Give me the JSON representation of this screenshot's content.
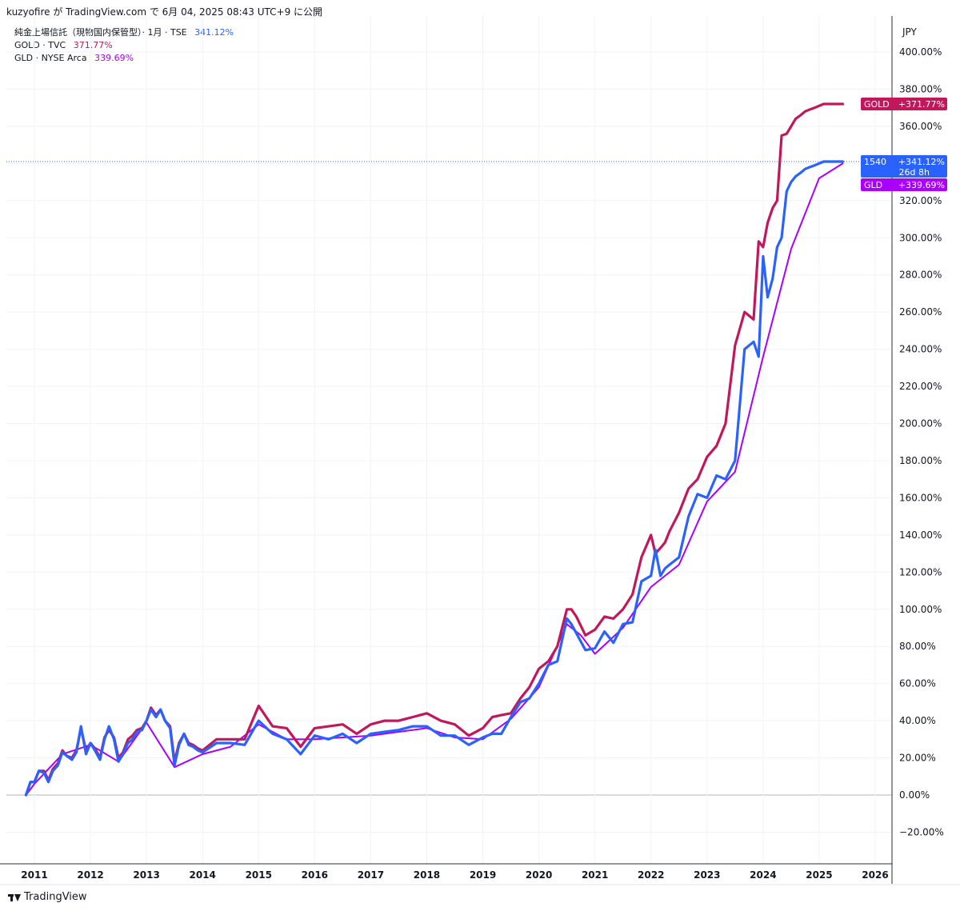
{
  "header": {
    "text": "kuzyofire が TradingView.com で 6月 04, 2025 08:43 UTC+9 に公開"
  },
  "legend": [
    {
      "name": "純金上場信託（現物国内保管型）· 1月 · TSE",
      "value": "341.12%",
      "color": "#2962ff"
    },
    {
      "name": "GOLD · TVC",
      "value": "371.77%",
      "color": "#c2185b"
    },
    {
      "name": "GLD · NYSE Arca",
      "value": "339.69%",
      "color": "#aa00ff"
    }
  ],
  "currency": "JPY",
  "price_labels": {
    "gold": {
      "name": "GOLD",
      "value": "+371.77%",
      "color": "#c2185b"
    },
    "main": {
      "name": "1540",
      "value": "+341.12%",
      "countdown": "26d 8h",
      "color": "#2962ff"
    },
    "gld": {
      "name": "GLD",
      "value": "+339.69%",
      "color": "#aa00ff"
    }
  },
  "footer": {
    "brand": "TradingView"
  },
  "chart_data": {
    "type": "line",
    "title": "",
    "xlabel": "",
    "ylabel": "",
    "ylim": [
      -32,
      405
    ],
    "xlim": [
      2010.85,
      2026.5
    ],
    "y_ticks": [
      -20,
      0,
      20,
      40,
      60,
      80,
      100,
      120,
      140,
      160,
      180,
      200,
      220,
      240,
      260,
      280,
      300,
      320,
      340,
      360,
      380,
      400
    ],
    "y_tick_labels": [
      "−20.00%",
      "0.00%",
      "20.00%",
      "40.00%",
      "60.00%",
      "80.00%",
      "100.00%",
      "120.00%",
      "140.00%",
      "160.00%",
      "180.00%",
      "200.00%",
      "220.00%",
      "240.00%",
      "260.00%",
      "280.00%",
      "300.00%",
      "320.00%",
      "340.00%",
      "360.00%",
      "380.00%",
      "400.00%"
    ],
    "x_ticks": [
      2011,
      2012,
      2013,
      2014,
      2015,
      2016,
      2017,
      2018,
      2019,
      2020,
      2021,
      2022,
      2023,
      2024,
      2025,
      2026
    ],
    "x_tick_labels": [
      "2011",
      "2012",
      "2013",
      "2014",
      "2015",
      "2016",
      "2017",
      "2018",
      "2019",
      "2020",
      "2021",
      "2022",
      "2023",
      "2024",
      "2025",
      "2026"
    ],
    "grid": true,
    "legend_position": "top-left",
    "series": [
      {
        "name": "純金上場信託（現物国内保管型）",
        "color": "#2962ff",
        "x": [
          2010.85,
          2010.93,
          2011.0,
          2011.08,
          2011.17,
          2011.25,
          2011.33,
          2011.42,
          2011.5,
          2011.58,
          2011.67,
          2011.75,
          2011.83,
          2011.92,
          2012.0,
          2012.08,
          2012.17,
          2012.25,
          2012.33,
          2012.42,
          2012.5,
          2012.58,
          2012.67,
          2012.75,
          2012.83,
          2012.92,
          2013.0,
          2013.08,
          2013.17,
          2013.25,
          2013.33,
          2013.42,
          2013.5,
          2013.58,
          2013.67,
          2013.75,
          2013.83,
          2013.92,
          2014.0,
          2014.25,
          2014.5,
          2014.75,
          2015.0,
          2015.25,
          2015.5,
          2015.75,
          2016.0,
          2016.25,
          2016.5,
          2016.75,
          2017.0,
          2017.25,
          2017.5,
          2017.75,
          2018.0,
          2018.25,
          2018.5,
          2018.75,
          2019.0,
          2019.17,
          2019.33,
          2019.5,
          2019.67,
          2019.83,
          2020.0,
          2020.17,
          2020.33,
          2020.5,
          2020.58,
          2020.67,
          2020.83,
          2021.0,
          2021.17,
          2021.33,
          2021.5,
          2021.67,
          2021.83,
          2022.0,
          2022.08,
          2022.17,
          2022.25,
          2022.33,
          2022.5,
          2022.67,
          2022.83,
          2023.0,
          2023.17,
          2023.33,
          2023.5,
          2023.67,
          2023.83,
          2023.92,
          2024.0,
          2024.08,
          2024.17,
          2024.25,
          2024.33,
          2024.42,
          2024.5,
          2024.58,
          2024.67,
          2024.75,
          2024.83,
          2024.92,
          2025.0,
          2025.08,
          2025.17,
          2025.25,
          2025.33,
          2025.42
        ],
        "values": [
          0,
          7,
          7,
          13,
          12,
          7,
          13,
          16,
          23,
          21,
          19,
          23,
          37,
          22,
          28,
          24,
          19,
          30,
          37,
          30,
          18,
          22,
          28,
          30,
          34,
          35,
          40,
          46,
          42,
          46,
          40,
          36,
          16,
          27,
          33,
          27,
          26,
          24,
          23,
          28,
          28,
          27,
          40,
          33,
          30,
          22,
          32,
          30,
          33,
          28,
          33,
          34,
          35,
          37,
          37,
          32,
          32,
          27,
          31,
          33,
          33,
          42,
          50,
          52,
          60,
          70,
          72,
          95,
          92,
          87,
          78,
          79,
          88,
          82,
          92,
          93,
          115,
          118,
          132,
          118,
          122,
          124,
          128,
          150,
          162,
          160,
          172,
          170,
          180,
          240,
          244,
          236,
          290,
          268,
          278,
          295,
          300,
          325,
          330,
          333,
          335,
          337,
          338,
          339,
          340,
          341,
          341,
          341,
          341,
          341
        ],
        "note": "approximate reading"
      },
      {
        "name": "GOLD",
        "color": "#c2185b",
        "x": [
          2010.85,
          2010.93,
          2011.0,
          2011.08,
          2011.17,
          2011.25,
          2011.33,
          2011.42,
          2011.5,
          2011.58,
          2011.67,
          2011.75,
          2011.83,
          2011.92,
          2012.0,
          2012.08,
          2012.17,
          2012.25,
          2012.33,
          2012.42,
          2012.5,
          2012.58,
          2012.67,
          2012.75,
          2012.83,
          2012.92,
          2013.0,
          2013.08,
          2013.17,
          2013.25,
          2013.33,
          2013.42,
          2013.5,
          2013.58,
          2013.67,
          2013.75,
          2013.83,
          2013.92,
          2014.0,
          2014.25,
          2014.5,
          2014.75,
          2015.0,
          2015.25,
          2015.5,
          2015.75,
          2016.0,
          2016.25,
          2016.5,
          2016.75,
          2017.0,
          2017.25,
          2017.5,
          2017.75,
          2018.0,
          2018.25,
          2018.5,
          2018.75,
          2019.0,
          2019.17,
          2019.33,
          2019.5,
          2019.67,
          2019.83,
          2020.0,
          2020.17,
          2020.33,
          2020.5,
          2020.58,
          2020.67,
          2020.83,
          2021.0,
          2021.17,
          2021.33,
          2021.5,
          2021.67,
          2021.83,
          2022.0,
          2022.08,
          2022.17,
          2022.25,
          2022.33,
          2022.5,
          2022.67,
          2022.83,
          2023.0,
          2023.17,
          2023.33,
          2023.5,
          2023.67,
          2023.83,
          2023.92,
          2024.0,
          2024.08,
          2024.17,
          2024.25,
          2024.33,
          2024.42,
          2024.5,
          2024.58,
          2024.67,
          2024.75,
          2024.83,
          2024.92,
          2025.0,
          2025.08,
          2025.17,
          2025.25,
          2025.33,
          2025.42
        ],
        "values": [
          0,
          7,
          7,
          13,
          13,
          8,
          14,
          17,
          24,
          21,
          20,
          24,
          36,
          24,
          28,
          25,
          20,
          31,
          35,
          31,
          20,
          23,
          30,
          32,
          35,
          36,
          40,
          47,
          43,
          46,
          40,
          37,
          18,
          28,
          33,
          28,
          27,
          25,
          24,
          30,
          30,
          30,
          48,
          37,
          36,
          26,
          36,
          37,
          38,
          33,
          38,
          40,
          40,
          42,
          44,
          40,
          38,
          32,
          36,
          42,
          43,
          44,
          52,
          58,
          68,
          72,
          80,
          100,
          100,
          96,
          86,
          89,
          96,
          95,
          100,
          108,
          128,
          140,
          130,
          133,
          136,
          142,
          152,
          165,
          170,
          182,
          188,
          200,
          242,
          260,
          256,
          298,
          295,
          308,
          316,
          320,
          355,
          356,
          360,
          364,
          366,
          368,
          369,
          370,
          371,
          372,
          372,
          372,
          372,
          372
        ],
        "note": "approximate reading"
      },
      {
        "name": "GLD",
        "color": "#aa00ff",
        "x": [
          2010.85,
          2011.0,
          2011.5,
          2012.0,
          2012.5,
          2013.0,
          2013.5,
          2014.0,
          2014.5,
          2015.0,
          2015.5,
          2016.0,
          2016.5,
          2017.0,
          2017.5,
          2018.0,
          2018.5,
          2019.0,
          2019.5,
          2020.0,
          2020.5,
          2020.75,
          2021.0,
          2021.5,
          2022.0,
          2022.5,
          2023.0,
          2023.5,
          2024.0,
          2024.5,
          2025.0,
          2025.42
        ],
        "values": [
          0,
          6,
          22,
          27,
          18,
          39,
          15,
          22,
          26,
          38,
          30,
          30,
          31,
          32,
          34,
          36,
          31,
          30,
          41,
          58,
          92,
          86,
          76,
          90,
          112,
          124,
          158,
          174,
          236,
          294,
          332,
          340
        ],
        "note": "approximate reading"
      }
    ]
  }
}
